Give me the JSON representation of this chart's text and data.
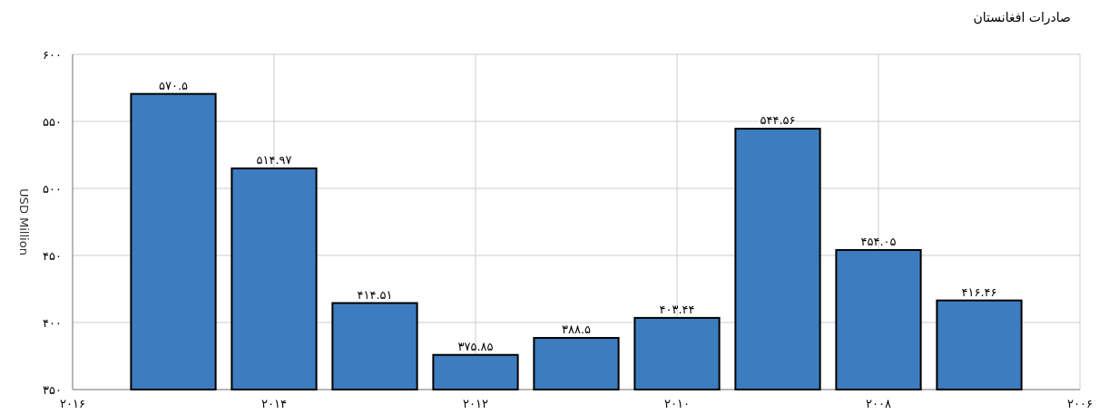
{
  "chart_data": {
    "type": "bar",
    "title": "صادرات افغانستان",
    "ylabel": "USD Million",
    "x": [
      2015,
      2014,
      2013,
      2012,
      2011,
      2010,
      2009,
      2008,
      2007
    ],
    "values": [
      570.5,
      514.97,
      414.51,
      375.85,
      388.5,
      403.44,
      544.56,
      454.05,
      416.46
    ],
    "value_labels": [
      "۵۷۰.۵",
      "۵۱۴.۹۷",
      "۴۱۴.۵۱",
      "۳۷۵.۸۵",
      "۳۸۸.۵",
      "۴۰۳.۴۴",
      "۵۴۴.۵۶",
      "۴۵۴.۰۵",
      "۴۱۶.۴۶"
    ],
    "color": "#3d7cbf",
    "xlim": [
      2016,
      2006
    ],
    "xticks": [
      {
        "value": 2016,
        "label": "۲۰۱۶"
      },
      {
        "value": 2014,
        "label": "۲۰۱۴"
      },
      {
        "value": 2012,
        "label": "۲۰۱۲"
      },
      {
        "value": 2010,
        "label": "۲۰۱۰"
      },
      {
        "value": 2008,
        "label": "۲۰۰۸"
      },
      {
        "value": 2006,
        "label": "۲۰۰۶"
      }
    ],
    "ylim": [
      350,
      600
    ],
    "yticks": [
      {
        "value": 350,
        "label": "۳۵۰"
      },
      {
        "value": 400,
        "label": "۴۰۰"
      },
      {
        "value": 450,
        "label": "۴۵۰"
      },
      {
        "value": 500,
        "label": "۵۰۰"
      },
      {
        "value": 550,
        "label": "۵۵۰"
      },
      {
        "value": 600,
        "label": "۶۰۰"
      }
    ],
    "grid": true
  }
}
